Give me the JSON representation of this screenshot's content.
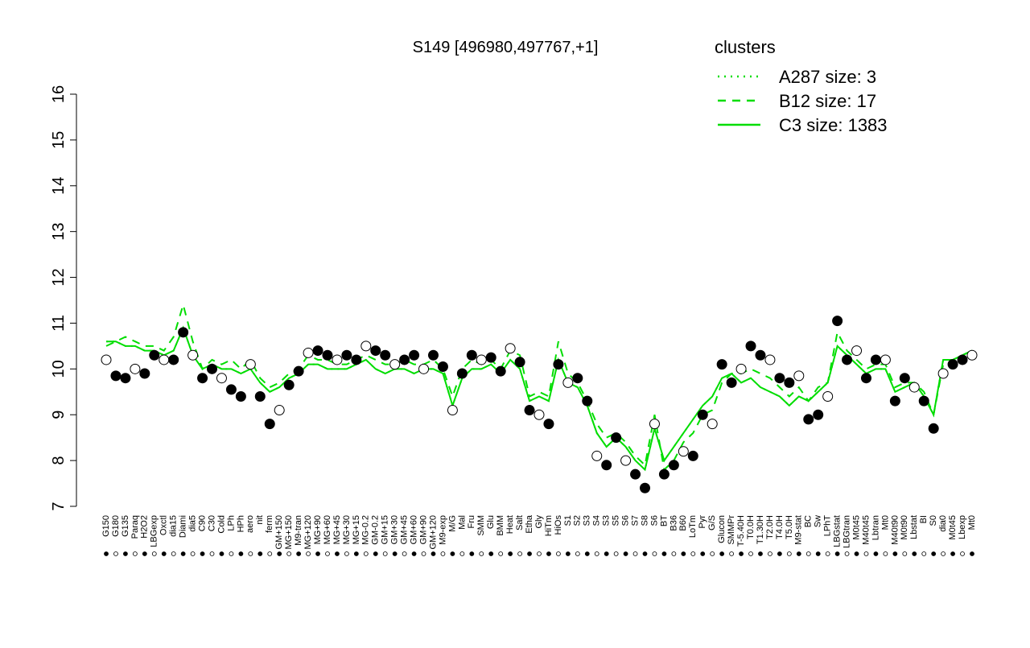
{
  "chart_data": {
    "type": "line",
    "title": "S149 [496980,497767,+1]",
    "legend_title": "clusters",
    "legend_color": "#00dd00",
    "point_color": "#000000",
    "ylim": [
      7,
      16
    ],
    "yticks": [
      7,
      8,
      9,
      10,
      11,
      12,
      13,
      14,
      15,
      16
    ],
    "categories": [
      "G150",
      "G180",
      "G135",
      "Paraq",
      "H2O2",
      "LBGexp",
      "Oxctl",
      "dia15",
      "Diami",
      "dia5",
      "C90",
      "C30",
      "Cold",
      "LPh",
      "HPh",
      "aero",
      "nit",
      "ferm",
      "GM+150",
      "MG+150",
      "M9-tran",
      "MG+120",
      "MG+90",
      "MG+60",
      "MG+45",
      "MG+30",
      "MG+15",
      "MG-0.2",
      "GM-0.2",
      "GM+15",
      "GM+30",
      "GM+45",
      "GM+60",
      "GM+90",
      "GM+120",
      "M9-exp",
      "M/G",
      "Mal",
      "Fru",
      "SMM",
      "Glu",
      "BMM",
      "Heat",
      "Salt",
      "Etha",
      "Gly",
      "HiTm",
      "HiOs",
      "S1",
      "S2",
      "S3",
      "S4",
      "S3",
      "S5",
      "S6",
      "S7",
      "S8",
      "S6",
      "BT",
      "B36",
      "B60",
      "LoTm",
      "Pyr",
      "G/S",
      "Glucon",
      "SMMPr",
      "T-5.40H",
      "T0.0H",
      "T1.30H",
      "T2.0H",
      "T4.0H",
      "T5.0H",
      "M9-stat",
      "BC",
      "Sw",
      "LPhT",
      "LBGstat",
      "LBGtran",
      "M0t45",
      "M40t45",
      "Lbtran",
      "Mt0",
      "M40t90",
      "M0t90",
      "Lbstat",
      "BI",
      "S0",
      "dia0",
      "M0t45",
      "Lbexp",
      "Mt0"
    ],
    "values": [
      10.2,
      9.85,
      9.8,
      10.0,
      9.9,
      10.3,
      10.2,
      10.2,
      10.8,
      10.3,
      9.8,
      10.0,
      9.8,
      9.55,
      9.4,
      10.1,
      9.4,
      8.8,
      9.1,
      9.65,
      9.95,
      10.35,
      10.4,
      10.3,
      10.2,
      10.3,
      10.2,
      10.5,
      10.4,
      10.3,
      10.1,
      10.2,
      10.3,
      10.0,
      10.3,
      10.05,
      9.1,
      9.9,
      10.3,
      10.2,
      10.25,
      9.95,
      10.45,
      10.15,
      9.1,
      9.0,
      8.8,
      10.1,
      9.7,
      9.8,
      9.3,
      8.1,
      7.9,
      8.5,
      8.0,
      7.7,
      7.4,
      8.8,
      7.7,
      7.9,
      8.2,
      8.1,
      9.0,
      8.8,
      10.1,
      9.7,
      10.0,
      10.5,
      10.3,
      10.2,
      9.8,
      9.7,
      9.85,
      8.9,
      9.0,
      9.4,
      11.05,
      10.2,
      10.4,
      9.8,
      10.2,
      10.2,
      9.3,
      9.8,
      9.6,
      9.3,
      8.7,
      9.9,
      10.1,
      10.2,
      10.3
    ],
    "series": [
      {
        "name": "A287 size: 3",
        "color": "#00dd00",
        "dash": "dotted",
        "values": [
          10.6,
          10.6,
          10.5,
          10.5,
          10.4,
          10.4,
          10.3,
          10.4,
          10.9,
          10.3,
          10.0,
          10.1,
          10.0,
          10.0,
          9.9,
          10.0,
          9.7,
          9.5,
          9.6,
          9.8,
          9.9,
          10.1,
          10.1,
          10.0,
          10.0,
          10.0,
          10.1,
          10.2,
          10.0,
          9.9,
          10.0,
          10.0,
          9.9,
          10.0,
          10.0,
          9.9,
          9.2,
          9.8,
          10.0,
          10.0,
          10.1,
          9.9,
          10.2,
          10.0,
          9.3,
          9.4,
          9.3,
          10.2,
          9.7,
          9.6,
          9.2,
          8.6,
          8.3,
          8.5,
          8.3,
          8.0,
          7.8,
          8.7,
          8.0,
          8.3,
          8.6,
          8.9,
          9.2,
          9.4,
          9.8,
          9.9,
          9.7,
          9.8,
          9.6,
          9.5,
          9.4,
          9.2,
          9.4,
          9.3,
          9.5,
          9.7,
          10.5,
          10.3,
          10.1,
          9.9,
          10.0,
          10.0,
          9.5,
          9.6,
          9.7,
          9.4,
          9.0,
          10.2,
          10.2,
          10.3,
          10.4
        ]
      },
      {
        "name": "B12 size: 17",
        "color": "#00dd00",
        "dash": "dashed",
        "values": [
          10.5,
          10.6,
          10.7,
          10.6,
          10.5,
          10.5,
          10.4,
          10.7,
          11.4,
          10.6,
          10.0,
          10.2,
          10.1,
          10.2,
          10.0,
          10.2,
          9.8,
          9.6,
          9.7,
          9.9,
          10.0,
          10.3,
          10.2,
          10.2,
          10.1,
          10.1,
          10.2,
          10.3,
          10.2,
          10.1,
          10.1,
          10.2,
          10.1,
          10.1,
          10.2,
          10.0,
          9.4,
          10.0,
          10.2,
          10.1,
          10.2,
          10.0,
          10.4,
          10.3,
          9.4,
          9.5,
          9.4,
          10.6,
          9.9,
          9.7,
          9.3,
          8.8,
          8.5,
          8.6,
          8.4,
          8.1,
          7.9,
          9.0,
          7.8,
          8.0,
          8.4,
          8.6,
          9.0,
          9.1,
          9.7,
          9.9,
          9.9,
          10.0,
          9.9,
          9.8,
          9.6,
          9.4,
          9.6,
          9.3,
          9.6,
          9.7,
          10.8,
          10.4,
          10.2,
          10.0,
          10.1,
          10.1,
          9.6,
          9.7,
          9.7,
          9.5,
          9.0,
          10.1,
          10.1,
          10.3,
          10.4
        ]
      },
      {
        "name": "C3 size: 1383",
        "color": "#00dd00",
        "dash": "solid",
        "values": [
          10.6,
          10.6,
          10.5,
          10.5,
          10.4,
          10.4,
          10.3,
          10.4,
          10.9,
          10.3,
          10.0,
          10.1,
          10.0,
          10.0,
          9.9,
          10.0,
          9.7,
          9.5,
          9.6,
          9.8,
          9.9,
          10.1,
          10.1,
          10.0,
          10.0,
          10.0,
          10.1,
          10.2,
          10.0,
          9.9,
          10.0,
          10.0,
          9.9,
          10.0,
          10.0,
          9.9,
          9.2,
          9.8,
          10.0,
          10.0,
          10.1,
          9.9,
          10.2,
          10.0,
          9.3,
          9.4,
          9.3,
          10.2,
          9.7,
          9.6,
          9.2,
          8.6,
          8.3,
          8.5,
          8.3,
          8.0,
          7.8,
          8.7,
          8.0,
          8.3,
          8.6,
          8.9,
          9.2,
          9.4,
          9.8,
          9.9,
          9.7,
          9.8,
          9.6,
          9.5,
          9.4,
          9.2,
          9.4,
          9.3,
          9.5,
          9.7,
          10.5,
          10.3,
          10.1,
          9.9,
          10.0,
          10.0,
          9.5,
          9.6,
          9.7,
          9.4,
          9.0,
          10.2,
          10.2,
          10.3,
          10.4
        ]
      }
    ]
  }
}
